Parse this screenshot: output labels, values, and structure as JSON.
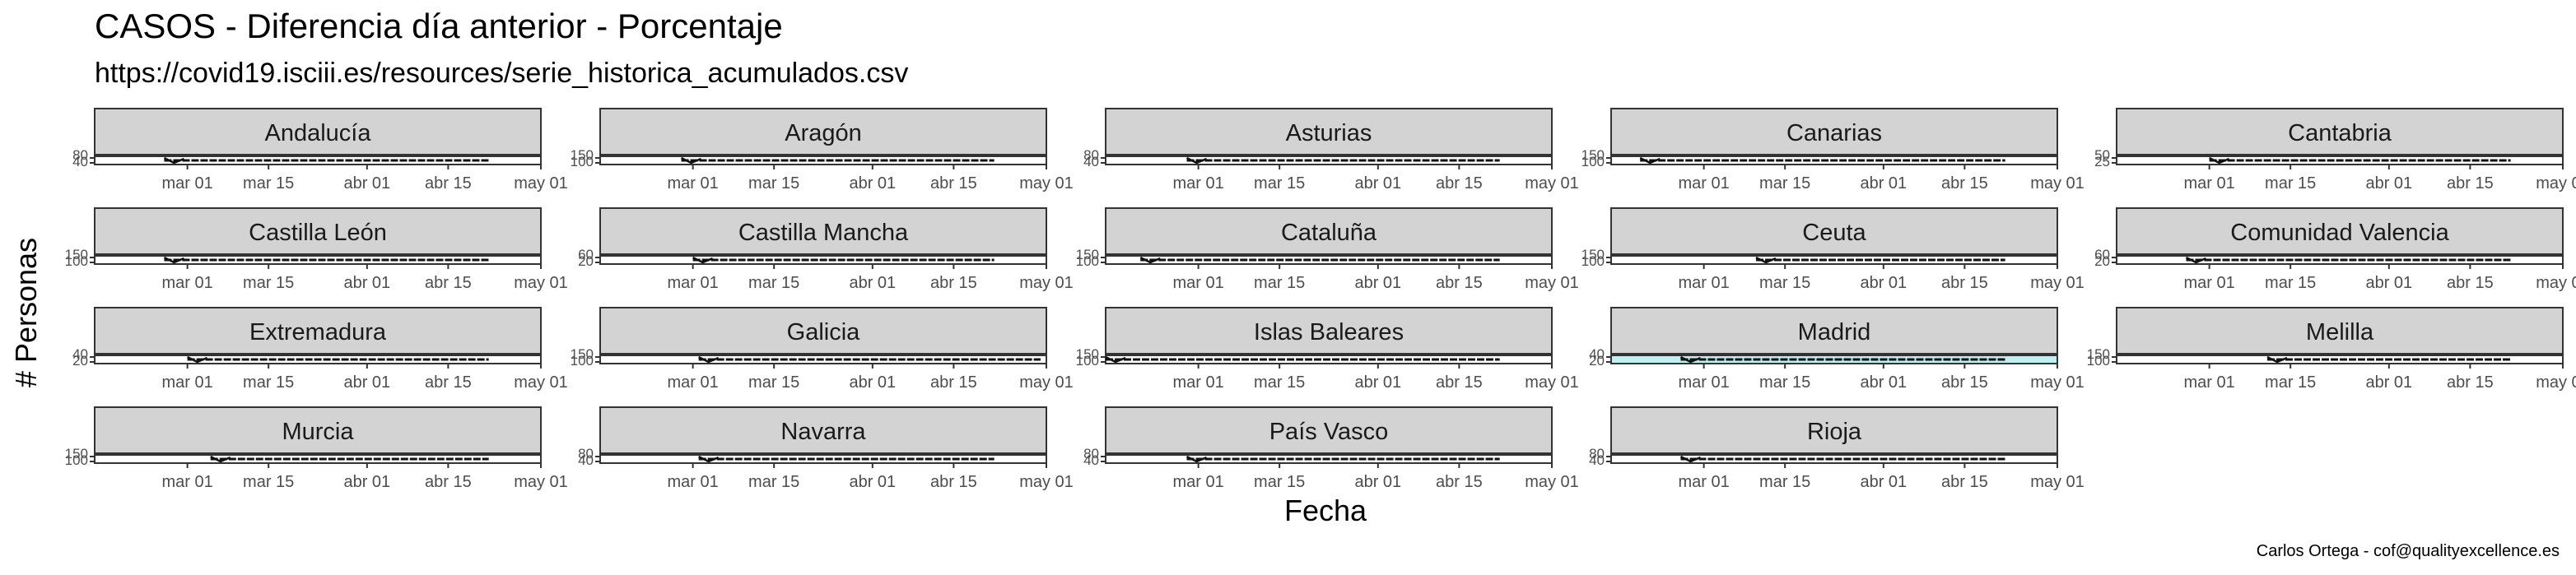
{
  "chart_data": {
    "type": "line",
    "title": "CASOS - Diferencia día anterior - Porcentaje",
    "subtitle": "https://covid19.isciii.es/resources/serie_historica_acumulados.csv",
    "xlabel": "Fecha",
    "ylabel": "# Personas",
    "caption": "Carlos Ortega - cof@qualityexcellence.es",
    "x_ticks": [
      "mar 01",
      "mar 15",
      "abr 01",
      "abr 15",
      "may 01"
    ],
    "x_range": [
      "2020-02-14",
      "2020-05-01"
    ],
    "highlight_color": "#bfeff0",
    "strip_color": "#d3d3d3",
    "facets": [
      {
        "name": "Andalucía",
        "y_ticks": [
          "40",
          "80"
        ],
        "series_range": [
          "2020-02-26",
          "2020-04-22"
        ]
      },
      {
        "name": "Aragón",
        "y_ticks": [
          "100",
          "150"
        ],
        "series_range": [
          "2020-02-28",
          "2020-04-22"
        ]
      },
      {
        "name": "Asturias",
        "y_ticks": [
          "40",
          "80"
        ],
        "series_range": [
          "2020-02-28",
          "2020-04-22"
        ]
      },
      {
        "name": "Canarias",
        "y_ticks": [
          "100",
          "150"
        ],
        "series_range": [
          "2020-02-19",
          "2020-04-22"
        ]
      },
      {
        "name": "Cantabria",
        "y_ticks": [
          "25",
          "50"
        ],
        "series_range": [
          "2020-03-01",
          "2020-04-22"
        ]
      },
      {
        "name": "Castilla León",
        "y_ticks": [
          "100",
          "150"
        ],
        "series_range": [
          "2020-02-26",
          "2020-04-22"
        ]
      },
      {
        "name": "Castilla Mancha",
        "y_ticks": [
          "20",
          "60"
        ],
        "series_range": [
          "2020-03-01",
          "2020-04-22"
        ]
      },
      {
        "name": "Cataluña",
        "y_ticks": [
          "100",
          "150"
        ],
        "series_range": [
          "2020-02-20",
          "2020-04-22"
        ]
      },
      {
        "name": "Ceuta",
        "y_ticks": [
          "100",
          "150"
        ],
        "series_range": [
          "2020-03-10",
          "2020-04-22"
        ]
      },
      {
        "name": "Comunidad Valencia",
        "y_ticks": [
          "20",
          "60"
        ],
        "series_range": [
          "2020-02-26",
          "2020-04-22"
        ]
      },
      {
        "name": "Extremadura",
        "y_ticks": [
          "20",
          "40"
        ],
        "series_range": [
          "2020-03-01",
          "2020-04-22"
        ]
      },
      {
        "name": "Galicia",
        "y_ticks": [
          "100",
          "150"
        ],
        "series_range": [
          "2020-03-02",
          "2020-04-30"
        ]
      },
      {
        "name": "Islas Baleares",
        "y_ticks": [
          "100",
          "150"
        ],
        "series_range": [
          "2020-02-14",
          "2020-04-22"
        ]
      },
      {
        "name": "Madrid",
        "y_ticks": [
          "20",
          "40"
        ],
        "series_range": [
          "2020-02-26",
          "2020-04-22"
        ],
        "highlight": true
      },
      {
        "name": "Melilla",
        "y_ticks": [
          "100",
          "150"
        ],
        "series_range": [
          "2020-03-11",
          "2020-04-22"
        ]
      },
      {
        "name": "Murcia",
        "y_ticks": [
          "100",
          "150"
        ],
        "series_range": [
          "2020-03-05",
          "2020-04-22"
        ]
      },
      {
        "name": "Navarra",
        "y_ticks": [
          "40",
          "80"
        ],
        "series_range": [
          "2020-03-02",
          "2020-04-22"
        ]
      },
      {
        "name": "País Vasco",
        "y_ticks": [
          "40",
          "80"
        ],
        "series_range": [
          "2020-02-28",
          "2020-04-22"
        ]
      },
      {
        "name": "Rioja",
        "y_ticks": [
          "40",
          "80"
        ],
        "series_range": [
          "2020-02-26",
          "2020-04-22"
        ]
      }
    ]
  }
}
